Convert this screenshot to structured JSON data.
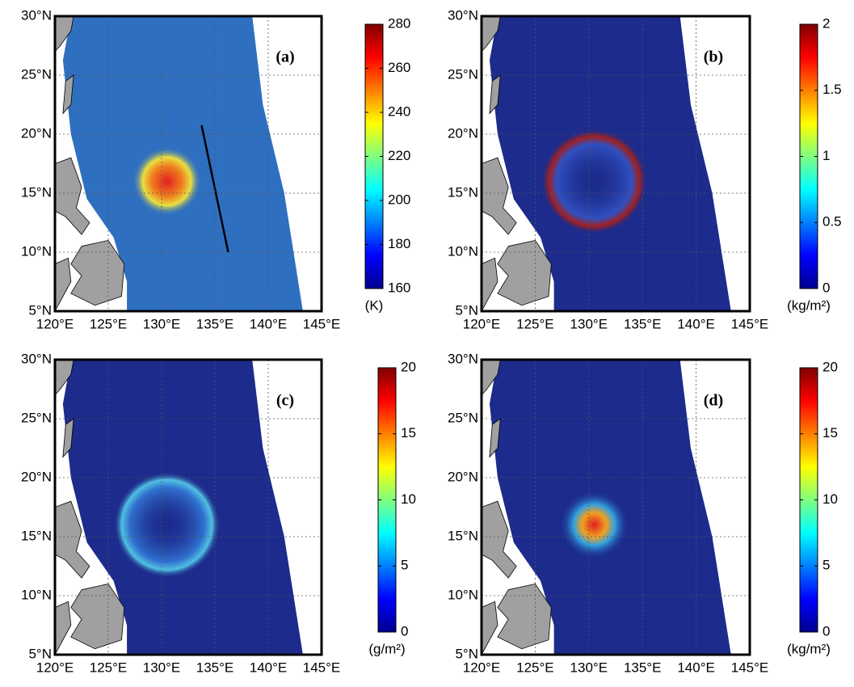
{
  "chart_data": [
    {
      "type": "map",
      "panel_label": "(a)",
      "xlim": [
        120,
        145
      ],
      "xticks": [
        {
          "value": 120,
          "label": "120°E"
        },
        {
          "value": 125,
          "label": "125°E"
        },
        {
          "value": 130,
          "label": "130°E"
        },
        {
          "value": 135,
          "label": "135°E"
        },
        {
          "value": 140,
          "label": "140°E"
        },
        {
          "value": 145,
          "label": "145°E"
        }
      ],
      "ylim": [
        5,
        30
      ],
      "yticks": [
        {
          "value": 5,
          "label": "5°N"
        },
        {
          "value": 10,
          "label": "10°N"
        },
        {
          "value": 15,
          "label": "15°N"
        },
        {
          "value": 20,
          "label": "20°N"
        },
        {
          "value": 25,
          "label": "25°N"
        },
        {
          "value": 30,
          "label": "30°N"
        }
      ],
      "grid": true,
      "colorbar": {
        "lim": [
          160,
          280
        ],
        "ticks": [
          160,
          180,
          200,
          220,
          240,
          260,
          280
        ],
        "label": "(K)"
      }
    },
    {
      "type": "map",
      "panel_label": "(b)",
      "xlim": [
        120,
        145
      ],
      "xticks": [
        {
          "value": 120,
          "label": "120°E"
        },
        {
          "value": 125,
          "label": "125°E"
        },
        {
          "value": 130,
          "label": "130°E"
        },
        {
          "value": 135,
          "label": "135°E"
        },
        {
          "value": 140,
          "label": "140°E"
        },
        {
          "value": 145,
          "label": "145°E"
        }
      ],
      "ylim": [
        5,
        30
      ],
      "yticks": [
        {
          "value": 5,
          "label": "5°N"
        },
        {
          "value": 10,
          "label": "10°N"
        },
        {
          "value": 15,
          "label": "15°N"
        },
        {
          "value": 20,
          "label": "20°N"
        },
        {
          "value": 25,
          "label": "25°N"
        },
        {
          "value": 30,
          "label": "30°N"
        }
      ],
      "grid": true,
      "colorbar": {
        "lim": [
          0,
          2
        ],
        "ticks": [
          0,
          0.5,
          1,
          1.5,
          2
        ],
        "label": "(kg/m²)"
      }
    },
    {
      "type": "map",
      "panel_label": "(c)",
      "xlim": [
        120,
        145
      ],
      "xticks": [
        {
          "value": 120,
          "label": "120°E"
        },
        {
          "value": 125,
          "label": "125°E"
        },
        {
          "value": 130,
          "label": "130°E"
        },
        {
          "value": 135,
          "label": "135°E"
        },
        {
          "value": 140,
          "label": "140°E"
        },
        {
          "value": 145,
          "label": "145°E"
        }
      ],
      "ylim": [
        5,
        30
      ],
      "yticks": [
        {
          "value": 5,
          "label": "5°N"
        },
        {
          "value": 10,
          "label": "10°N"
        },
        {
          "value": 15,
          "label": "15°N"
        },
        {
          "value": 20,
          "label": "20°N"
        },
        {
          "value": 25,
          "label": "25°N"
        },
        {
          "value": 30,
          "label": "30°N"
        }
      ],
      "grid": true,
      "colorbar": {
        "lim": [
          0,
          20
        ],
        "ticks": [
          0,
          5,
          10,
          15,
          20
        ],
        "label": "(g/m²)"
      }
    },
    {
      "type": "map",
      "panel_label": "(d)",
      "xlim": [
        120,
        145
      ],
      "xticks": [
        {
          "value": 120,
          "label": "120°E"
        },
        {
          "value": 125,
          "label": "125°E"
        },
        {
          "value": 130,
          "label": "130°E"
        },
        {
          "value": 135,
          "label": "135°E"
        },
        {
          "value": 140,
          "label": "140°E"
        },
        {
          "value": 145,
          "label": "145°E"
        }
      ],
      "ylim": [
        5,
        30
      ],
      "yticks": [
        {
          "value": 5,
          "label": "5°N"
        },
        {
          "value": 10,
          "label": "10°N"
        },
        {
          "value": 15,
          "label": "15°N"
        },
        {
          "value": 20,
          "label": "20°N"
        },
        {
          "value": 25,
          "label": "25°N"
        },
        {
          "value": 30,
          "label": "30°N"
        }
      ],
      "grid": true,
      "colorbar": {
        "lim": [
          0,
          20
        ],
        "ticks": [
          0,
          5,
          10,
          15,
          20
        ],
        "label": "(kg/m²)"
      }
    }
  ]
}
